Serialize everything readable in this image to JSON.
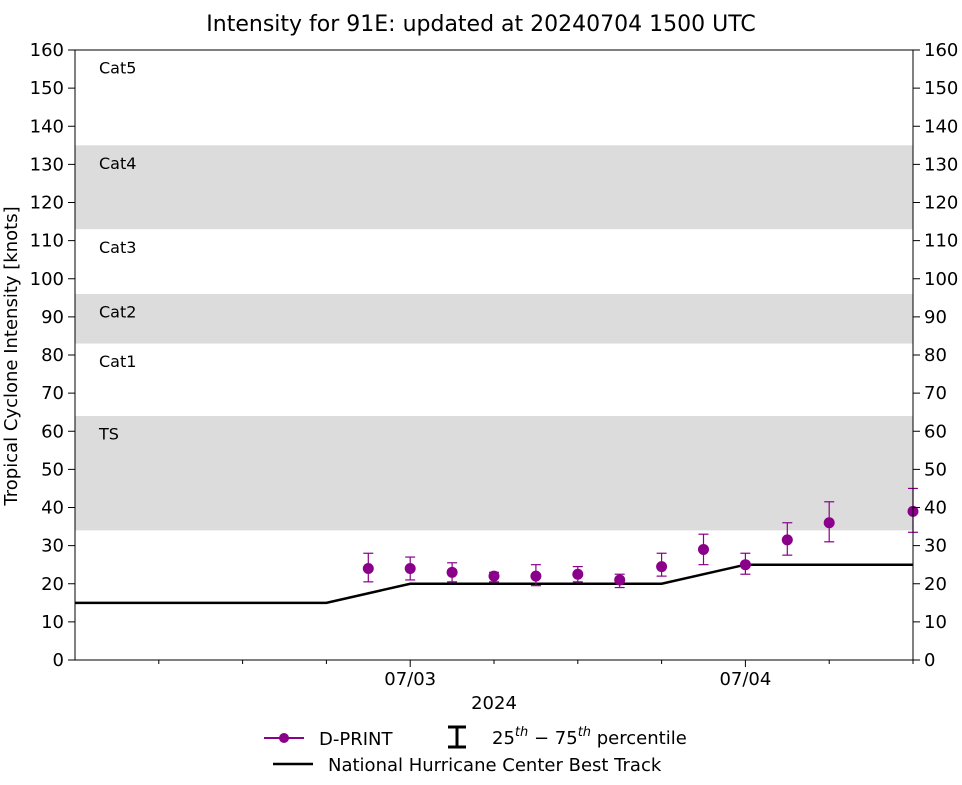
{
  "chart_data": {
    "type": "scatter",
    "title": "Intensity for 91E: updated at 20240704 1500 UTC",
    "xlabel": "2024",
    "ylabel": "Tropical Cyclone Intensity [knots]",
    "ylim": [
      0,
      160
    ],
    "xlim": [
      "2024-07-02T00:00",
      "2024-07-04T12:00"
    ],
    "yticks": [
      0,
      10,
      20,
      30,
      40,
      50,
      60,
      70,
      80,
      90,
      100,
      110,
      120,
      130,
      140,
      150,
      160
    ],
    "xticks_major": [
      {
        "x": "2024-07-03T00:00",
        "label": "07/03"
      },
      {
        "x": "2024-07-04T00:00",
        "label": "07/04"
      }
    ],
    "xticks_minor": [
      "2024-07-02T06:00",
      "2024-07-02T12:00",
      "2024-07-02T18:00",
      "2024-07-03T06:00",
      "2024-07-03T12:00",
      "2024-07-03T18:00",
      "2024-07-04T06:00",
      "2024-07-04T12:00"
    ],
    "category_bands": [
      {
        "label": "TS",
        "y0": 34,
        "y1": 64,
        "shaded": true
      },
      {
        "label": "Cat1",
        "y0": 64,
        "y1": 83,
        "shaded": false
      },
      {
        "label": "Cat2",
        "y0": 83,
        "y1": 96,
        "shaded": true
      },
      {
        "label": "Cat3",
        "y0": 96,
        "y1": 113,
        "shaded": false
      },
      {
        "label": "Cat4",
        "y0": 113,
        "y1": 135,
        "shaded": true
      },
      {
        "label": "Cat5",
        "y0": 135,
        "y1": 160,
        "shaded": false
      }
    ],
    "series": [
      {
        "name": "D-PRINT",
        "color": "#8b008b",
        "points": [
          {
            "x": "2024-07-02T21:00",
            "y": 24,
            "p25": 20.5,
            "p75": 28
          },
          {
            "x": "2024-07-03T00:00",
            "y": 24,
            "p25": 21,
            "p75": 27
          },
          {
            "x": "2024-07-03T03:00",
            "y": 23,
            "p25": 20.5,
            "p75": 25.5
          },
          {
            "x": "2024-07-03T06:00",
            "y": 22,
            "p25": 20.5,
            "p75": 23
          },
          {
            "x": "2024-07-03T09:00",
            "y": 22,
            "p25": 19.5,
            "p75": 25
          },
          {
            "x": "2024-07-03T12:00",
            "y": 22.5,
            "p25": 20.5,
            "p75": 24.5
          },
          {
            "x": "2024-07-03T15:00",
            "y": 21,
            "p25": 19,
            "p75": 22.5
          },
          {
            "x": "2024-07-03T18:00",
            "y": 24.5,
            "p25": 22,
            "p75": 28
          },
          {
            "x": "2024-07-03T21:00",
            "y": 29,
            "p25": 25,
            "p75": 33
          },
          {
            "x": "2024-07-04T00:00",
            "y": 25,
            "p25": 22.5,
            "p75": 28
          },
          {
            "x": "2024-07-04T03:00",
            "y": 31.5,
            "p25": 27.5,
            "p75": 36
          },
          {
            "x": "2024-07-04T06:00",
            "y": 36,
            "p25": 31,
            "p75": 41.5
          },
          {
            "x": "2024-07-04T12:00",
            "y": 39,
            "p25": 33.5,
            "p75": 45
          }
        ]
      },
      {
        "name": "National Hurricane Center Best Track",
        "color": "#000000",
        "points": [
          {
            "x": "2024-07-02T00:00",
            "y": 15
          },
          {
            "x": "2024-07-02T06:00",
            "y": 15
          },
          {
            "x": "2024-07-02T12:00",
            "y": 15
          },
          {
            "x": "2024-07-02T18:00",
            "y": 15
          },
          {
            "x": "2024-07-03T00:00",
            "y": 20
          },
          {
            "x": "2024-07-03T06:00",
            "y": 20
          },
          {
            "x": "2024-07-03T12:00",
            "y": 20
          },
          {
            "x": "2024-07-03T18:00",
            "y": 20
          },
          {
            "x": "2024-07-04T00:00",
            "y": 25
          },
          {
            "x": "2024-07-04T06:00",
            "y": 25
          },
          {
            "x": "2024-07-04T12:00",
            "y": 25
          }
        ]
      }
    ],
    "legend": {
      "placement": "bottom",
      "dprint_label": "D-PRINT",
      "percentile_label_base": "25",
      "percentile_label_sup1": "th",
      "percentile_label_dash": " − 75",
      "percentile_label_sup2": "th",
      "percentile_label_tail": " percentile",
      "besttrack_label": "National Hurricane Center Best Track"
    },
    "colors": {
      "band_shade": "#dcdcdc",
      "dprint": "#8b008b",
      "besttrack": "#000000"
    },
    "grid": false
  }
}
